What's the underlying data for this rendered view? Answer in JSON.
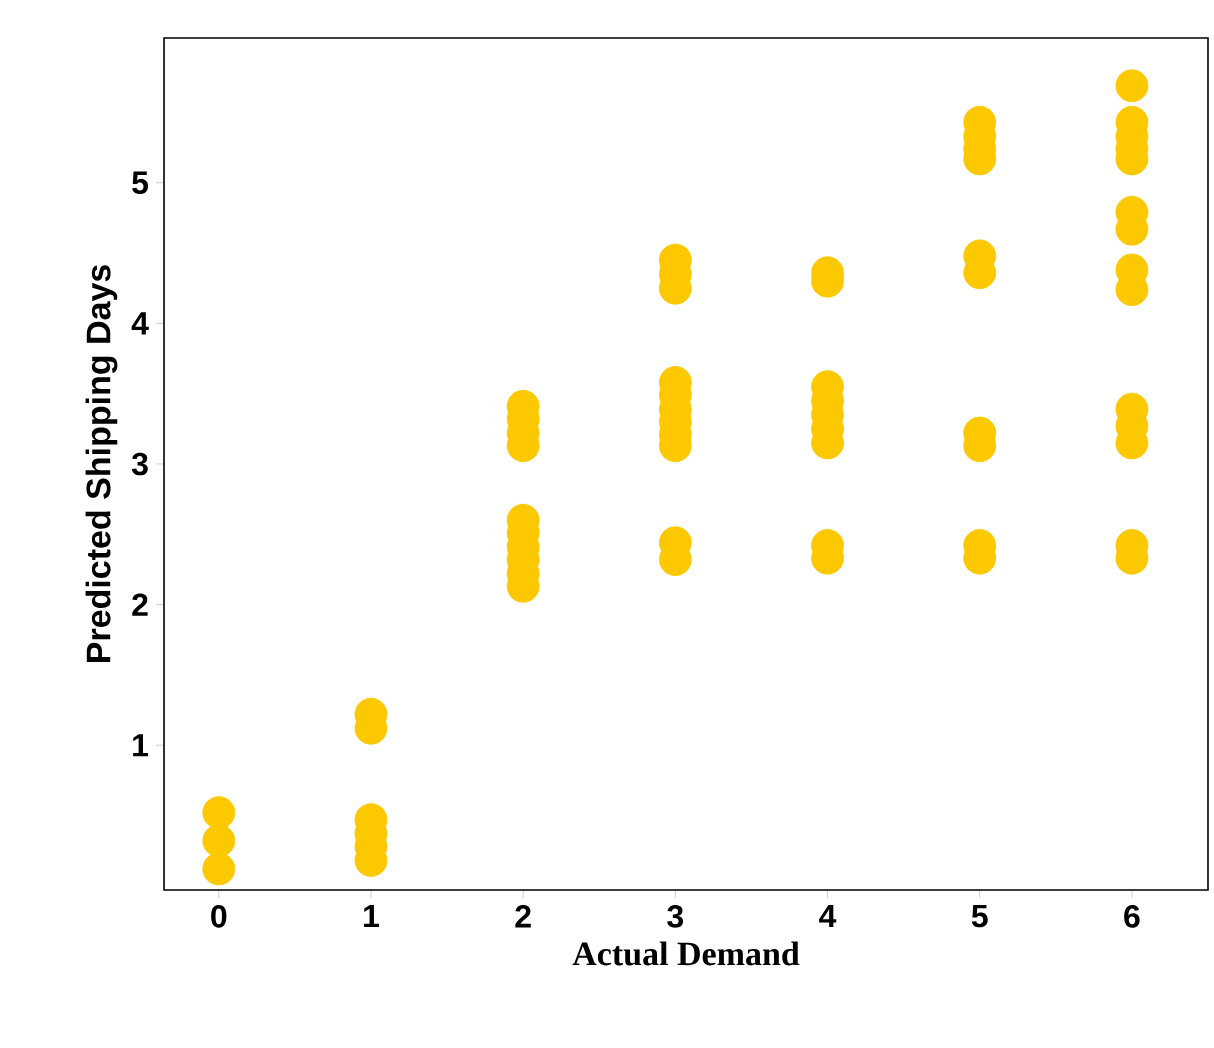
{
  "chart_data": {
    "type": "scatter",
    "xlabel": "Actual Demand",
    "ylabel": "Predicted Shipping Days",
    "x": [
      0,
      0,
      0,
      1,
      1,
      1,
      1,
      1,
      1,
      2,
      2,
      2,
      2,
      2,
      2,
      2,
      2,
      2,
      2,
      3,
      3,
      3,
      3,
      3,
      3,
      3,
      3,
      3,
      3,
      3,
      4,
      4,
      4,
      4,
      4,
      4,
      4,
      4,
      4,
      5,
      5,
      5,
      5,
      5,
      5,
      5,
      5,
      5,
      5,
      6,
      6,
      6,
      6,
      6,
      6,
      6,
      6,
      6,
      6,
      6,
      6,
      6,
      6
    ],
    "values": [
      0.52,
      0.32,
      0.12,
      1.22,
      1.12,
      0.47,
      0.37,
      0.28,
      0.18,
      3.41,
      3.32,
      3.22,
      3.13,
      2.6,
      2.51,
      2.41,
      2.32,
      2.22,
      2.13,
      4.45,
      4.35,
      4.25,
      3.58,
      3.49,
      3.39,
      3.3,
      3.21,
      3.13,
      2.44,
      2.32,
      4.36,
      4.3,
      3.55,
      3.45,
      3.35,
      3.25,
      3.15,
      2.42,
      2.33,
      5.43,
      5.33,
      5.24,
      5.17,
      4.48,
      4.36,
      3.22,
      3.13,
      2.42,
      2.33,
      5.69,
      5.43,
      5.33,
      5.24,
      5.17,
      4.79,
      4.67,
      4.38,
      4.24,
      3.39,
      3.27,
      3.15,
      2.42,
      2.33
    ],
    "color": "#fcc800",
    "xlim": [
      -0.36,
      6.5
    ],
    "ylim": [
      -0.03,
      6.03
    ],
    "xticks": [
      0,
      1,
      2,
      3,
      4,
      5,
      6
    ],
    "yticks": [
      1,
      2,
      3,
      4,
      5
    ]
  }
}
